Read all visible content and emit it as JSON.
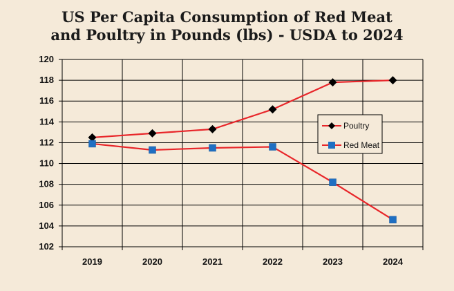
{
  "chart_data": {
    "type": "line",
    "title_line1": "US Per Capita Consumption of Red Meat",
    "title_line2": "and Poultry in Pounds (lbs) - USDA to 2024",
    "categories": [
      "2019",
      "2020",
      "2021",
      "2022",
      "2023",
      "2024"
    ],
    "ylim": [
      102,
      120
    ],
    "yticks": [
      102,
      104,
      106,
      108,
      110,
      112,
      114,
      116,
      118,
      120
    ],
    "grid": true,
    "legend_position": "right",
    "series": [
      {
        "name": "Poultry",
        "values": [
          112.5,
          112.9,
          113.3,
          115.2,
          117.8,
          118.0
        ],
        "marker": "diamond",
        "marker_color": "#000000",
        "line_color": "#e8262a"
      },
      {
        "name": "Red Meat",
        "values": [
          111.9,
          111.3,
          111.5,
          111.6,
          108.2,
          104.6
        ],
        "marker": "square",
        "marker_color": "#1f6fc2",
        "line_color": "#e8262a"
      }
    ]
  }
}
